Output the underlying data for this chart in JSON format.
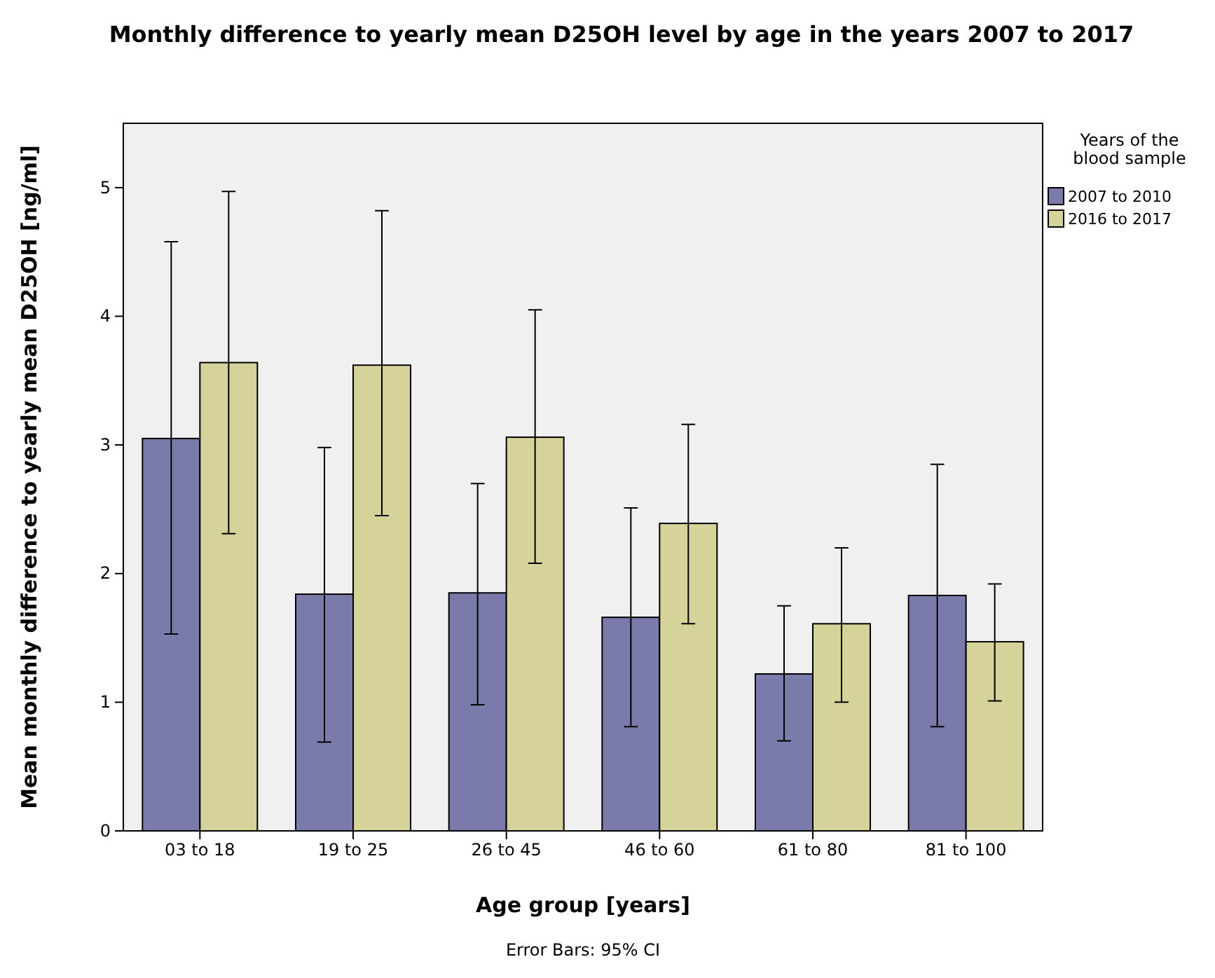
{
  "chart_data": {
    "type": "bar",
    "title": "Monthly difference to yearly mean D25OH level by age in the years 2007 to 2017",
    "xlabel": "Age group [years]",
    "ylabel": "Mean monthly difference to yearly mean D25OH [ng/ml]",
    "legend_title": "Years of the blood sample",
    "annotations": [
      "Error Bars: 95% CI"
    ],
    "categories": [
      "03 to 18",
      "19 to 25",
      "26 to 45",
      "46 to 60",
      "61 to 80",
      "81 to 100"
    ],
    "series": [
      {
        "name": "2007 to 2010",
        "color": "#7b7bab",
        "values": [
          3.05,
          1.84,
          1.85,
          1.66,
          1.22,
          1.83
        ],
        "errors": [
          [
            1.53,
            4.58
          ],
          [
            0.69,
            2.98
          ],
          [
            0.98,
            2.7
          ],
          [
            0.81,
            2.51
          ],
          [
            0.7,
            1.75
          ],
          [
            0.81,
            2.85
          ]
        ]
      },
      {
        "name": "2016 to 2017",
        "color": "#d6d39a",
        "values": [
          3.64,
          3.62,
          3.06,
          2.39,
          1.61,
          1.47
        ],
        "errors": [
          [
            2.31,
            4.97
          ],
          [
            2.45,
            4.82
          ],
          [
            2.08,
            4.05
          ],
          [
            1.61,
            3.16
          ],
          [
            1.0,
            2.2
          ],
          [
            1.01,
            1.92
          ]
        ]
      }
    ],
    "ylim": [
      0,
      5.5
    ],
    "yticks": [
      0,
      1,
      2,
      3,
      4,
      5
    ],
    "grid": false,
    "legend": "right"
  }
}
